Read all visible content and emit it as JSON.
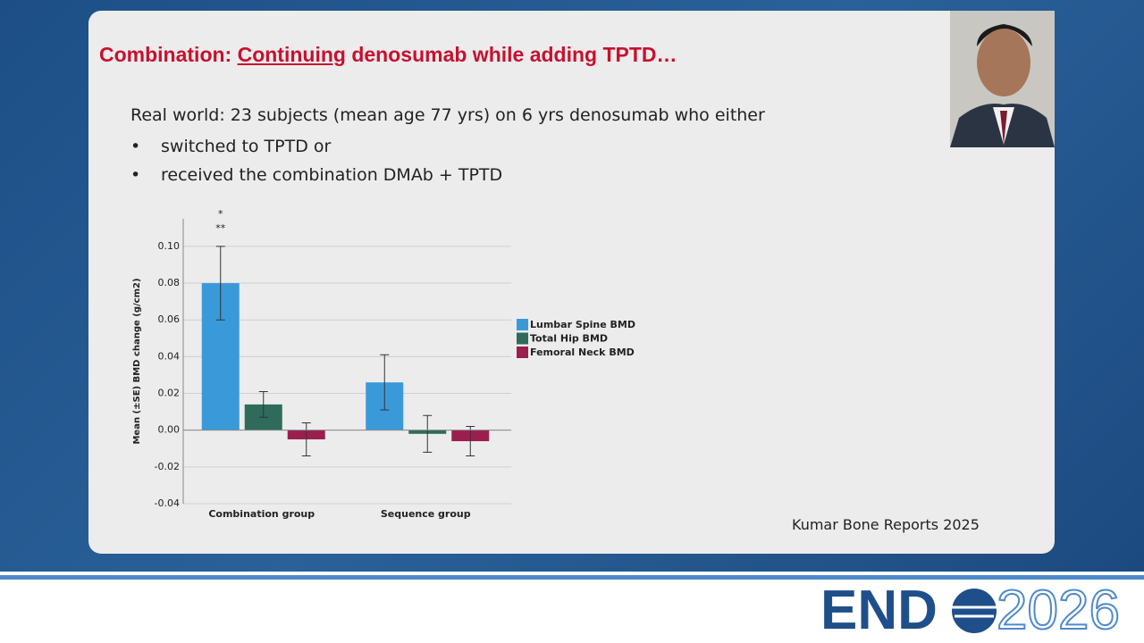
{
  "slide": {
    "title": {
      "before": "Combination: ",
      "underlined": "Continuing",
      "after": " denosumab while adding TPTD…"
    },
    "intro": "Real world: 23 subjects (mean age 77 yrs) on 6 yrs denosumab who either",
    "bullets": [
      "switched to TPTD or",
      "received the combination DMAb + TPTD"
    ],
    "source": "Kumar Bone Reports 2025"
  },
  "logo": {
    "left": "END",
    "right": "2026"
  },
  "chart_data": {
    "type": "bar",
    "y_label": "Mean (±SE) BMD change (g/cm2)",
    "categories": [
      "Combination group",
      "Sequence group"
    ],
    "series": [
      {
        "name": "Lumbar Spine BMD",
        "color": "#3a9ad9",
        "values": [
          0.08,
          0.026
        ],
        "errors": [
          0.02,
          0.015
        ]
      },
      {
        "name": "Total Hip BMD",
        "color": "#2e6b5a",
        "values": [
          0.014,
          -0.002
        ],
        "errors": [
          0.007,
          0.01
        ]
      },
      {
        "name": "Femoral Neck BMD",
        "color": "#9b1f4e",
        "values": [
          -0.005,
          -0.006
        ],
        "errors": [
          0.009,
          0.008
        ]
      }
    ],
    "annotations": [
      "*",
      "**"
    ],
    "ylim": [
      -0.04,
      0.115
    ],
    "yticks": [
      {
        "value": -0.04,
        "label": "-0.04"
      },
      {
        "value": -0.02,
        "label": "-0.02"
      },
      {
        "value": 0,
        "label": "0.00"
      },
      {
        "value": 0.02,
        "label": "0.02"
      },
      {
        "value": 0.04,
        "label": "0.04"
      },
      {
        "value": 0.06,
        "label": "0.06"
      },
      {
        "value": 0.08,
        "label": "0.08"
      },
      {
        "value": 0.1,
        "label": "0.10"
      }
    ],
    "grid": true,
    "legend": "right"
  }
}
